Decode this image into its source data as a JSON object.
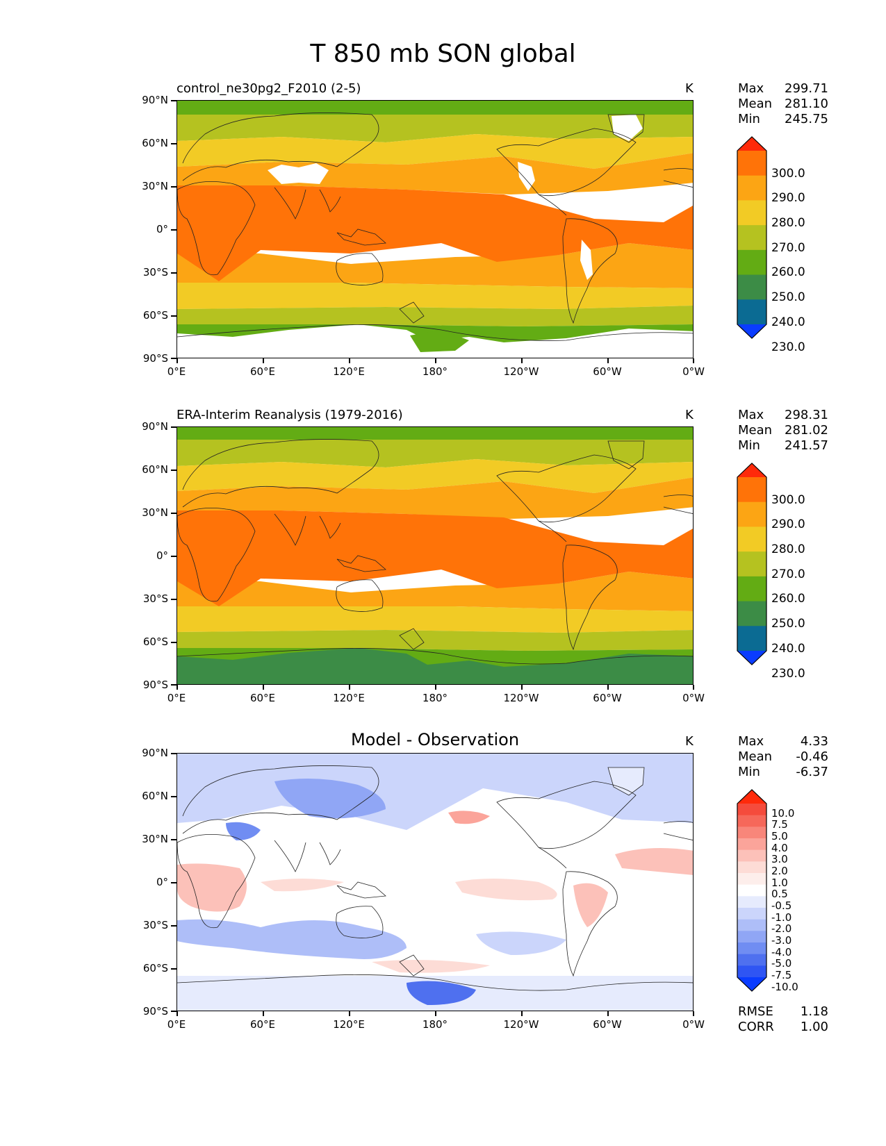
{
  "figure": {
    "title": "T 850 mb SON global"
  },
  "axes": {
    "y_labels": [
      "90°N",
      "60°N",
      "30°N",
      "0°",
      "30°S",
      "60°S",
      "90°S"
    ],
    "x_labels": [
      "0°E",
      "60°E",
      "120°E",
      "180°",
      "120°W",
      "60°W",
      "0°W"
    ]
  },
  "panels": [
    {
      "title": "control_ne30pg2_F2010 (2-5)",
      "title_center": "",
      "units": "K",
      "stats": {
        "max_label": "Max",
        "max": "299.71",
        "mean_label": "Mean",
        "mean": "281.10",
        "min_label": "Min",
        "min": "245.75"
      },
      "colorbar": {
        "labels": [
          "300.0",
          "290.0",
          "280.0",
          "270.0",
          "260.0",
          "250.0",
          "240.0",
          "230.0"
        ],
        "colors": [
          "#ff2a0a",
          "#ff7308",
          "#fca514",
          "#f2cb25",
          "#b5c220",
          "#63ac14",
          "#3c8c46",
          "#0b6b93",
          "#0a3cff"
        ]
      }
    },
    {
      "title": "ERA-Interim Reanalysis (1979-2016)",
      "title_center": "",
      "units": "K",
      "stats": {
        "max_label": "Max",
        "max": "298.31",
        "mean_label": "Mean",
        "mean": "281.02",
        "min_label": "Min",
        "min": "241.57"
      },
      "colorbar": {
        "labels": [
          "300.0",
          "290.0",
          "280.0",
          "270.0",
          "260.0",
          "250.0",
          "240.0",
          "230.0"
        ],
        "colors": [
          "#ff2a0a",
          "#ff7308",
          "#fca514",
          "#f2cb25",
          "#b5c220",
          "#63ac14",
          "#3c8c46",
          "#0b6b93",
          "#0a3cff"
        ]
      }
    },
    {
      "title": "",
      "title_center": "Model - Observation",
      "units": "K",
      "stats": {
        "max_label": "Max",
        "max": "4.33",
        "mean_label": "Mean",
        "mean": "-0.46",
        "min_label": "Min",
        "min": "-6.37"
      },
      "colorbar": {
        "labels": [
          "10.0",
          "7.5",
          "5.0",
          "4.0",
          "3.0",
          "2.0",
          "1.0",
          "0.5",
          "-0.5",
          "-1.0",
          "-2.0",
          "-3.0",
          "-4.0",
          "-5.0",
          "-7.5",
          "-10.0"
        ],
        "colors": [
          "#ff2a0a",
          "#f54b3c",
          "#f6685a",
          "#f8867a",
          "#fba49a",
          "#fcc1b9",
          "#fddcd6",
          "#fdeeeb",
          "#ffffff",
          "#e6ebfd",
          "#cbd5fb",
          "#aebef8",
          "#90a6f5",
          "#708df2",
          "#4f70ef",
          "#2f55f3",
          "#0a3cff"
        ]
      },
      "metrics": {
        "rmse_label": "RMSE",
        "rmse": "1.18",
        "corr_label": "CORR",
        "corr": "1.00"
      }
    }
  ]
}
